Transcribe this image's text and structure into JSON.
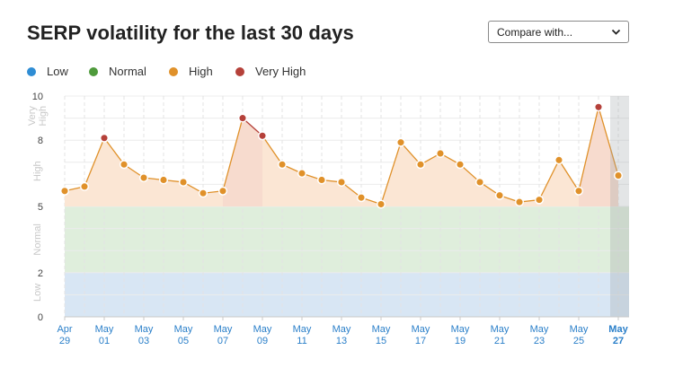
{
  "header": {
    "title": "SERP volatility for the last 30 days",
    "compare_label": "Compare with...",
    "compare_icon": "chevron-down-icon"
  },
  "legend": [
    {
      "label": "Low",
      "color": "#2f8dd4"
    },
    {
      "label": "Normal",
      "color": "#4e9a3b"
    },
    {
      "label": "High",
      "color": "#e0912a"
    },
    {
      "label": "Very High",
      "color": "#b5413a"
    }
  ],
  "chart_data": {
    "type": "area",
    "ylim": [
      0,
      10
    ],
    "yticks": [
      0,
      2,
      5,
      8,
      10
    ],
    "bands": [
      {
        "label": "Low",
        "from": 0,
        "to": 2,
        "color": "#d8e6f4"
      },
      {
        "label": "Normal",
        "from": 2,
        "to": 5,
        "color": "#dfeedc"
      },
      {
        "label": "High",
        "from": 5,
        "to": 9,
        "color": "#fbe6d4"
      },
      {
        "label": "Very High",
        "from": 9,
        "to": 10,
        "color": "#f6e0de"
      }
    ],
    "band_labels": [
      {
        "text": "Low",
        "y": 1.1
      },
      {
        "text": "Normal",
        "y": 3.5
      },
      {
        "text": "High",
        "y": 6.6
      },
      {
        "text": "Very High",
        "y": 9.1
      }
    ],
    "x_labels": [
      [
        "Apr",
        "29"
      ],
      [
        "May",
        "01"
      ],
      [
        "May",
        "03"
      ],
      [
        "May",
        "05"
      ],
      [
        "May",
        "07"
      ],
      [
        "May",
        "09"
      ],
      [
        "May",
        "11"
      ],
      [
        "May",
        "13"
      ],
      [
        "May",
        "15"
      ],
      [
        "May",
        "17"
      ],
      [
        "May",
        "19"
      ],
      [
        "May",
        "21"
      ],
      [
        "May",
        "23"
      ],
      [
        "May",
        "25"
      ],
      [
        "May",
        "27"
      ]
    ],
    "x": [
      "Apr 29",
      "Apr 30",
      "May 01",
      "May 02",
      "May 03",
      "May 04",
      "May 05",
      "May 06",
      "May 07",
      "May 08",
      "May 09",
      "May 10",
      "May 11",
      "May 12",
      "May 13",
      "May 14",
      "May 15",
      "May 16",
      "May 17",
      "May 18",
      "May 19",
      "May 20",
      "May 21",
      "May 22",
      "May 23",
      "May 24",
      "May 25",
      "May 26",
      "May 27"
    ],
    "values": [
      5.7,
      5.9,
      8.1,
      6.9,
      6.3,
      6.2,
      6.1,
      5.6,
      5.7,
      9.0,
      8.2,
      6.9,
      6.5,
      6.2,
      6.1,
      5.4,
      5.1,
      7.9,
      6.9,
      7.4,
      6.9,
      6.1,
      5.5,
      5.2,
      5.3,
      7.1,
      5.7,
      9.5,
      6.4
    ],
    "highlight_last": true
  }
}
